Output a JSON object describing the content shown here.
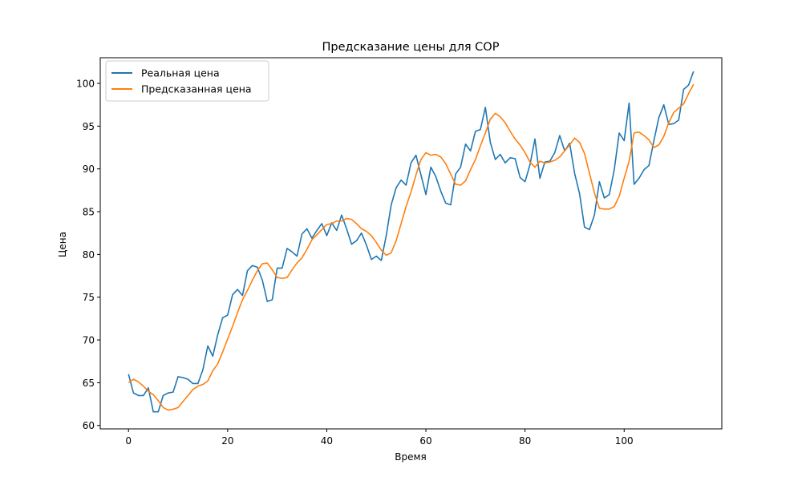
{
  "chart_data": {
    "type": "line",
    "title": "Предсказание цены для COP",
    "xlabel": "Время",
    "ylabel": "Цена",
    "xlim": [
      -5.7,
      119.7
    ],
    "ylim": [
      59.6,
      103.0
    ],
    "xticks": [
      0,
      20,
      40,
      60,
      80,
      100
    ],
    "yticks": [
      60,
      65,
      70,
      75,
      80,
      85,
      90,
      95,
      100
    ],
    "grid": false,
    "legend_position": "top-left",
    "series": [
      {
        "name": "Реальная цена",
        "color": "#1f77b4",
        "values": [
          66.0,
          63.8,
          63.5,
          63.5,
          64.4,
          61.6,
          61.6,
          63.5,
          63.8,
          63.9,
          65.7,
          65.6,
          65.4,
          64.9,
          64.9,
          66.5,
          69.3,
          68.1,
          70.6,
          72.6,
          72.9,
          75.3,
          75.9,
          75.2,
          78.1,
          78.7,
          78.5,
          77.0,
          74.5,
          74.7,
          78.4,
          78.4,
          80.7,
          80.3,
          79.8,
          82.4,
          83.0,
          81.9,
          82.8,
          83.6,
          82.2,
          83.7,
          82.8,
          84.6,
          83.0,
          81.2,
          81.6,
          82.5,
          81.1,
          79.4,
          79.8,
          79.3,
          82.2,
          85.8,
          87.8,
          88.7,
          88.1,
          90.7,
          91.6,
          89.3,
          87.0,
          90.2,
          89.1,
          87.4,
          86.0,
          85.8,
          89.4,
          90.2,
          92.9,
          92.1,
          94.4,
          94.6,
          97.2,
          93.1,
          91.1,
          91.7,
          90.7,
          91.3,
          91.2,
          89.0,
          88.5,
          90.5,
          93.5,
          88.9,
          90.8,
          90.9,
          91.9,
          93.9,
          92.1,
          93.0,
          89.5,
          87.1,
          83.2,
          82.9,
          84.6,
          88.5,
          86.6,
          87.0,
          89.9,
          94.2,
          93.3,
          97.7,
          88.2,
          88.9,
          89.9,
          90.4,
          93.3,
          96.0,
          97.5,
          95.2,
          95.3,
          95.7,
          99.3,
          99.8,
          101.4
        ]
      },
      {
        "name": "Предсказанная цена",
        "color": "#ff7f0e",
        "values": [
          65.0,
          65.4,
          65.1,
          64.6,
          64.0,
          63.6,
          62.9,
          62.1,
          61.8,
          61.9,
          62.1,
          62.8,
          63.5,
          64.2,
          64.6,
          64.8,
          65.2,
          66.4,
          67.2,
          68.6,
          70.1,
          71.6,
          73.2,
          74.7,
          75.8,
          77.0,
          78.1,
          78.9,
          79.0,
          78.2,
          77.3,
          77.2,
          77.3,
          78.2,
          79.0,
          79.6,
          80.6,
          81.7,
          82.3,
          82.9,
          83.5,
          83.6,
          83.9,
          83.9,
          84.2,
          84.1,
          83.6,
          83.0,
          82.7,
          82.2,
          81.4,
          80.5,
          79.9,
          80.2,
          81.6,
          83.6,
          85.6,
          87.3,
          89.3,
          91.1,
          91.9,
          91.6,
          91.7,
          91.4,
          90.6,
          89.4,
          88.2,
          88.1,
          88.6,
          89.9,
          91.1,
          92.7,
          94.2,
          95.8,
          96.5,
          96.1,
          95.4,
          94.4,
          93.5,
          92.8,
          91.9,
          90.8,
          90.2,
          90.9,
          90.7,
          90.8,
          91.0,
          91.4,
          92.1,
          92.8,
          93.6,
          93.1,
          91.8,
          89.5,
          87.2,
          85.4,
          85.3,
          85.3,
          85.6,
          86.8,
          88.9,
          90.9,
          94.2,
          94.3,
          93.9,
          93.4,
          92.5,
          92.8,
          93.8,
          95.4,
          96.6,
          97.1,
          97.6,
          98.8,
          99.9
        ]
      }
    ]
  }
}
